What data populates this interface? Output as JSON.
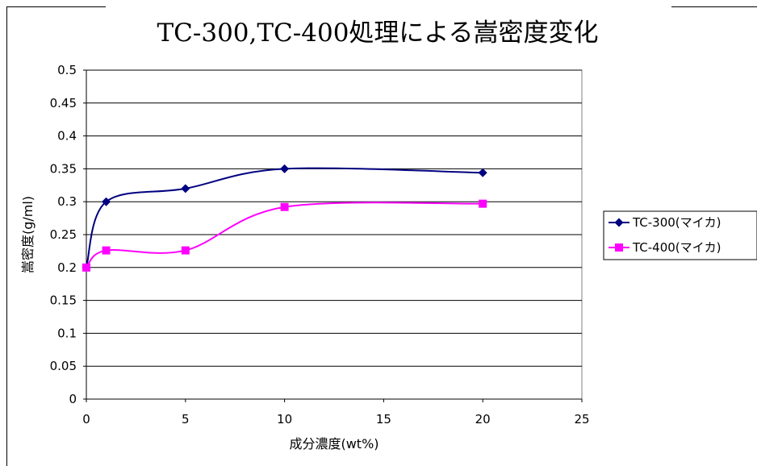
{
  "chart_data": {
    "type": "line",
    "title": "TC-300,TC-400処理による嵩密度変化",
    "xlabel": "成分濃度(wt%)",
    "ylabel": "嵩密度(g/ml)",
    "xlim": [
      0,
      25
    ],
    "ylim": [
      0,
      0.5
    ],
    "xticks": [
      "0",
      "5",
      "10",
      "15",
      "20",
      "25"
    ],
    "yticks": [
      "0",
      "0.05",
      "0.1",
      "0.15",
      "0.2",
      "0.25",
      "0.3",
      "0.35",
      "0.4",
      "0.45",
      "0.5"
    ],
    "grid": "horizontal",
    "legend_position": "right",
    "series": [
      {
        "name": "TC-300(マイカ)",
        "color": "#000080",
        "marker": "diamond",
        "x": [
          0,
          1,
          5,
          10,
          20
        ],
        "y": [
          0.2,
          0.3,
          0.32,
          0.35,
          0.344
        ]
      },
      {
        "name": "TC-400(マイカ)",
        "color": "#ff00ff",
        "marker": "square",
        "x": [
          0,
          1,
          5,
          10,
          20
        ],
        "y": [
          0.2,
          0.226,
          0.226,
          0.292,
          0.297
        ]
      }
    ]
  }
}
